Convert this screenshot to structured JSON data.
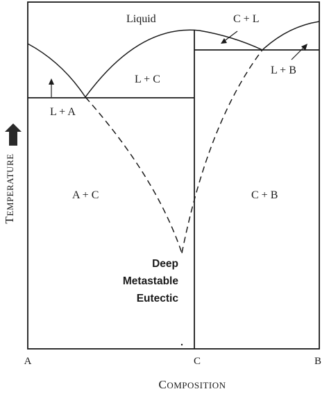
{
  "regions": {
    "liquid": "Liquid",
    "c_plus_l": "C + L",
    "l_plus_c": "L + C",
    "l_plus_a": "L + A",
    "l_plus_b": "L + B",
    "a_plus_c": "A + C",
    "c_plus_b": "C + B"
  },
  "eutectic_label": {
    "line1": "Deep",
    "line2": "Metastable",
    "line3": "Eutectic"
  },
  "x_axis": {
    "ticks": {
      "a": "A",
      "c": "C",
      "b": "B"
    },
    "title": {
      "first_letter": "C",
      "rest": "OMPOSITION"
    }
  },
  "y_axis": {
    "title": {
      "first_letter": "T",
      "rest": "EMPERATURE"
    },
    "direction_arrow": "up-arrow-icon"
  },
  "colors": {
    "ink": "#1a1a1a",
    "background": "#ffffff"
  }
}
